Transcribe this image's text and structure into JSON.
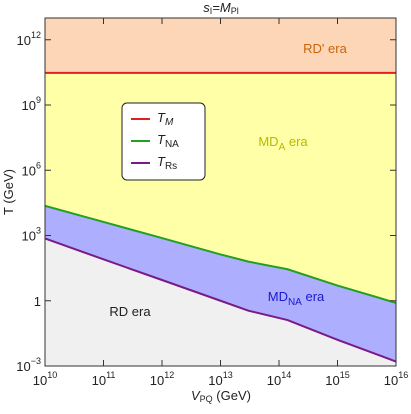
{
  "chart_data": {
    "type": "line",
    "title": [
      "s",
      "I",
      "=M",
      "Pl"
    ],
    "x_label": [
      "V",
      "PQ",
      " (GeV)"
    ],
    "y_label": "T (GeV)",
    "log_x": true,
    "log_y": true,
    "xlim": [
      10000000000.0,
      1e+16
    ],
    "ylim": [
      0.001,
      10000000000000.0
    ],
    "xticks": [
      {
        "value": 10000000000.0,
        "label": [
          "10",
          "10"
        ]
      },
      {
        "value": 100000000000.0,
        "label": [
          "10",
          "11"
        ]
      },
      {
        "value": 1000000000000.0,
        "label": [
          "10",
          "12"
        ]
      },
      {
        "value": 10000000000000.0,
        "label": [
          "10",
          "13"
        ]
      },
      {
        "value": 100000000000000.0,
        "label": [
          "10",
          "14"
        ]
      },
      {
        "value": 1000000000000000.0,
        "label": [
          "10",
          "15"
        ]
      },
      {
        "value": 1e+16,
        "label": [
          "10",
          "16"
        ]
      }
    ],
    "yticks": [
      {
        "value": 0.001,
        "label": [
          "10",
          "−3"
        ]
      },
      1,
      {
        "value": 1000,
        "label": [
          "10",
          "3"
        ]
      },
      {
        "value": 1000000.0,
        "label": [
          "10",
          "6"
        ]
      },
      {
        "value": 1000000000.0,
        "label": [
          "10",
          "9"
        ]
      },
      {
        "value": 1000000000000.0,
        "label": [
          "10",
          "12"
        ]
      }
    ],
    "x": [
      10000000000.0,
      100000000000.0,
      1000000000000.0,
      10000000000000.0,
      30000000000000.0,
      140000000000000.0,
      1000000000000000.0,
      1e+16
    ],
    "series": [
      {
        "name": "T",
        "name_sub": "M",
        "color": "#e02020",
        "values": [
          30000000000.0,
          30000000000.0,
          30000000000.0,
          30000000000.0,
          30000000000.0,
          30000000000.0,
          30000000000.0,
          30000000000.0
        ]
      },
      {
        "name": "T",
        "name_sub": "NA",
        "color": "#22a022",
        "values": [
          23000,
          4200,
          760,
          135,
          63,
          28,
          5,
          0.8
        ]
      },
      {
        "name": "T",
        "name_sub": "Rs",
        "color": "#7a1a8a",
        "values": [
          730,
          80,
          9,
          1.0,
          0.35,
          0.13,
          0.016,
          0.0016
        ]
      }
    ],
    "region_colors": [
      "#fcd6b6",
      "#ffffa8",
      "#aeaeff",
      "#f0f0f0"
    ],
    "annotations": [
      {
        "label": [
          "RD' era"
        ],
        "color": "#c8640a"
      },
      {
        "label": [
          "MD",
          "A",
          " era"
        ],
        "color": "#b8b800"
      },
      {
        "label": [
          "MD",
          "NA",
          " era"
        ],
        "color": "#1a1acc"
      },
      {
        "label": [
          "RD era"
        ],
        "color": "#222222"
      }
    ],
    "legend": true
  }
}
